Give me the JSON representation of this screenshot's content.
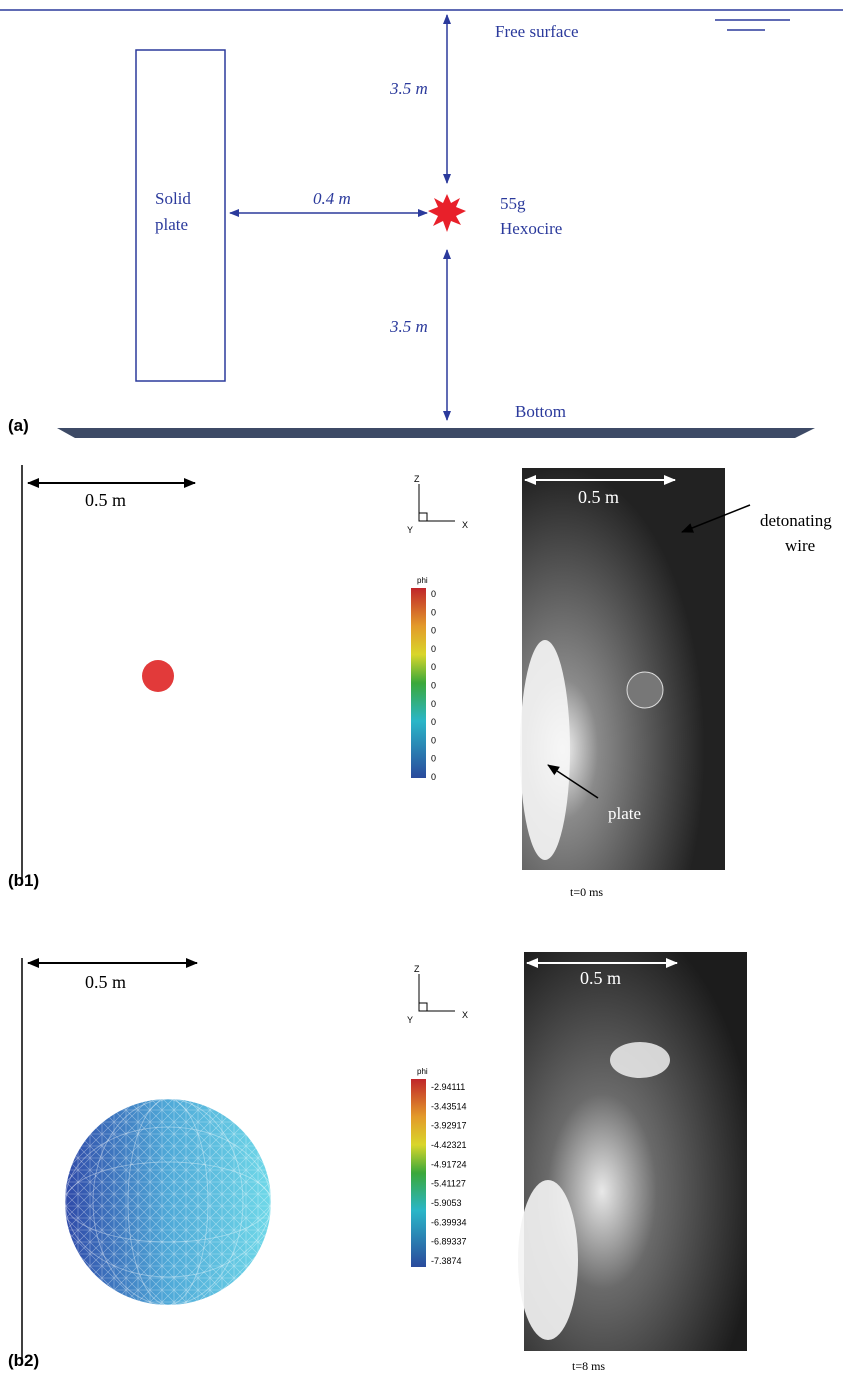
{
  "panel_a": {
    "label": "(a)",
    "free_surface": "Free surface",
    "bottom": "Bottom",
    "plate_line1": "Solid",
    "plate_line2": "plate",
    "charge_line1": "55g",
    "charge_line2": "Hexocire",
    "distance_top": "3.5 m",
    "distance_plate": "0.4 m",
    "distance_bottom": "3.5 m"
  },
  "panel_b1": {
    "label": "(b1)",
    "scale": "0.5 m",
    "axis_z": "Z",
    "axis_y": "Y",
    "axis_x": "X",
    "colorbar_title": "phi",
    "colorbar_ticks": [
      "0",
      "0",
      "0",
      "0",
      "0",
      "0",
      "0",
      "0",
      "0",
      "0",
      "0"
    ],
    "photo_scale": "0.5 m",
    "annotation_wire_line1": "detonating",
    "annotation_wire_line2": "wire",
    "annotation_plate": "plate",
    "time": "t=0 ms"
  },
  "panel_b2": {
    "label": "(b2)",
    "scale": "0.5 m",
    "axis_z": "Z",
    "axis_y": "Y",
    "axis_x": "X",
    "colorbar_title": "phi",
    "colorbar_ticks": [
      "-2.94111",
      "-3.43514",
      "-3.92917",
      "-4.42321",
      "-4.91724",
      "-5.41127",
      "-5.9053",
      "-6.39934",
      "-6.89337",
      "-7.3874"
    ],
    "photo_scale": "0.5 m",
    "time": "t=8 ms"
  }
}
